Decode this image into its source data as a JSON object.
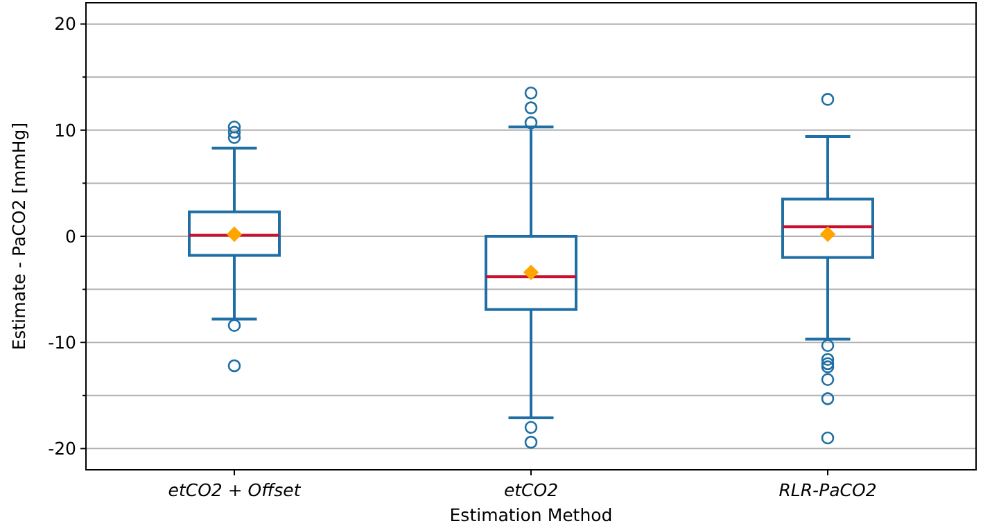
{
  "chart_data": {
    "type": "box",
    "xlabel": "Estimation Method",
    "ylabel": "Estimate - PaCO2 [mmHg]",
    "categories": [
      "etCO2 + Offset",
      "etCO2",
      "RLR-PaCO2"
    ],
    "series": [
      {
        "color": "#1f6fa5",
        "boxes": [
          {
            "low": -7.8,
            "q1": -1.8,
            "median": 0.1,
            "q3": 2.3,
            "high": 8.3,
            "mean": 0.2,
            "outliers": [
              10.3,
              9.8,
              9.3,
              -8.4,
              -12.2
            ]
          },
          {
            "low": -17.1,
            "q1": -6.9,
            "median": -3.8,
            "q3": 0,
            "high": 10.3,
            "mean": -3.4,
            "outliers": [
              13.5,
              12.1,
              10.7,
              -18.0,
              -19.4
            ]
          },
          {
            "low": -9.7,
            "q1": -2.0,
            "median": 0.9,
            "q3": 3.5,
            "high": 9.4,
            "mean": 0.2,
            "outliers": [
              12.9,
              -10.3,
              -11.6,
              -12.0,
              -12.3,
              -13.5,
              -15.3,
              -19.0
            ]
          }
        ]
      }
    ],
    "ylim": [
      -22,
      22
    ],
    "yticks": [
      -20,
      {
        "value": -15,
        "label": null
      },
      -10,
      {
        "value": -5,
        "label": null
      },
      0,
      {
        "value": 5,
        "label": null
      },
      10,
      {
        "value": 15,
        "label": null
      },
      20
    ],
    "grid": "y"
  }
}
